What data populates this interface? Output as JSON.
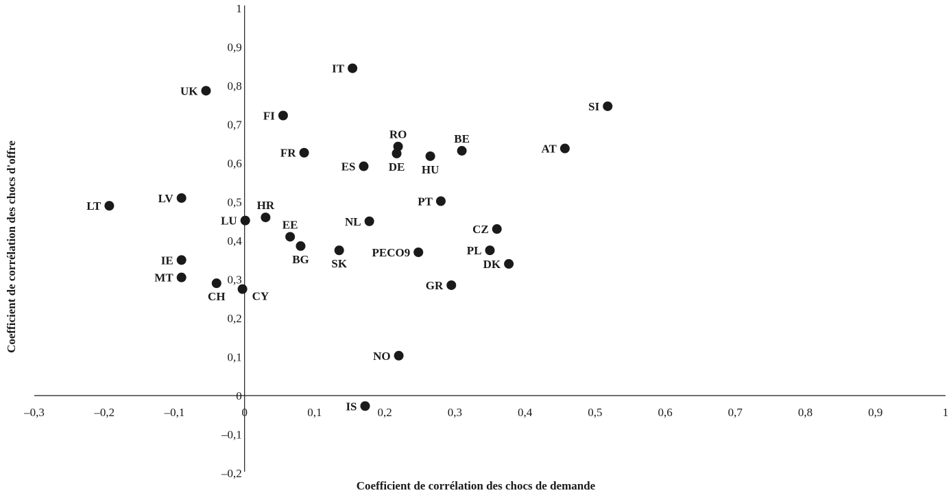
{
  "chart_data": {
    "type": "scatter",
    "title": "",
    "xlabel": "Coefficient de corrélation des chocs de demande",
    "ylabel": "Coefficient de corrélation des chocs d'offre",
    "xlim": [
      -0.3,
      1
    ],
    "ylim": [
      -0.2,
      1
    ],
    "grid": false,
    "x_ticks": [
      {
        "value": -0.3,
        "label": "–0,3"
      },
      {
        "value": -0.2,
        "label": "–0,2"
      },
      {
        "value": -0.1,
        "label": "–0,1"
      },
      {
        "value": 0,
        "label": "0"
      },
      {
        "value": 0.1,
        "label": "0,1"
      },
      {
        "value": 0.2,
        "label": "0,2"
      },
      {
        "value": 0.3,
        "label": "0,3"
      },
      {
        "value": 0.4,
        "label": "0,4"
      },
      {
        "value": 0.5,
        "label": "0,5"
      },
      {
        "value": 0.6,
        "label": "0,6"
      },
      {
        "value": 0.7,
        "label": "0,7"
      },
      {
        "value": 0.8,
        "label": "0,8"
      },
      {
        "value": 0.9,
        "label": "0,9"
      },
      {
        "value": 1,
        "label": "1"
      }
    ],
    "y_ticks": [
      {
        "value": 1,
        "label": "1"
      },
      {
        "value": 0.9,
        "label": "0,9"
      },
      {
        "value": 0.8,
        "label": "0,8"
      },
      {
        "value": 0.7,
        "label": "0,7"
      },
      {
        "value": 0.6,
        "label": "0,6"
      },
      {
        "value": 0.5,
        "label": "0,5"
      },
      {
        "value": 0.4,
        "label": "0,4"
      },
      {
        "value": 0.3,
        "label": "0,3"
      },
      {
        "value": 0.2,
        "label": "0,2"
      },
      {
        "value": 0.1,
        "label": "0,1"
      },
      {
        "value": 0,
        "label": "0"
      },
      {
        "value": -0.1,
        "label": "–0,1"
      },
      {
        "value": -0.2,
        "label": "–0,2"
      }
    ],
    "points": [
      {
        "label": "IT",
        "x": 0.154,
        "y": 0.845,
        "pos": "left"
      },
      {
        "label": "UK",
        "x": -0.055,
        "y": 0.787,
        "pos": "left"
      },
      {
        "label": "SI",
        "x": 0.518,
        "y": 0.747,
        "pos": "left"
      },
      {
        "label": "FI",
        "x": 0.055,
        "y": 0.723,
        "pos": "left"
      },
      {
        "label": "RO",
        "x": 0.219,
        "y": 0.643,
        "pos": "above"
      },
      {
        "label": "BE",
        "x": 0.31,
        "y": 0.632,
        "pos": "above"
      },
      {
        "label": "AT",
        "x": 0.457,
        "y": 0.638,
        "pos": "left"
      },
      {
        "label": "FR",
        "x": 0.085,
        "y": 0.627,
        "pos": "left"
      },
      {
        "label": "DE",
        "x": 0.217,
        "y": 0.625,
        "pos": "below"
      },
      {
        "label": "HU",
        "x": 0.265,
        "y": 0.618,
        "pos": "below"
      },
      {
        "label": "ES",
        "x": 0.17,
        "y": 0.592,
        "pos": "left"
      },
      {
        "label": "LT",
        "x": -0.193,
        "y": 0.49,
        "pos": "left"
      },
      {
        "label": "LV",
        "x": -0.09,
        "y": 0.51,
        "pos": "left"
      },
      {
        "label": "PT",
        "x": 0.28,
        "y": 0.502,
        "pos": "left"
      },
      {
        "label": "HR",
        "x": 0.03,
        "y": 0.46,
        "pos": "above"
      },
      {
        "label": "LU",
        "x": 0.001,
        "y": 0.452,
        "pos": "left"
      },
      {
        "label": "NL",
        "x": 0.178,
        "y": 0.45,
        "pos": "left"
      },
      {
        "label": "CZ",
        "x": 0.36,
        "y": 0.43,
        "pos": "left"
      },
      {
        "label": "EE",
        "x": 0.065,
        "y": 0.41,
        "pos": "above"
      },
      {
        "label": "BG",
        "x": 0.08,
        "y": 0.386,
        "pos": "below"
      },
      {
        "label": "SK",
        "x": 0.135,
        "y": 0.375,
        "pos": "below"
      },
      {
        "label": "PECO9",
        "x": 0.248,
        "y": 0.37,
        "pos": "left"
      },
      {
        "label": "PL",
        "x": 0.35,
        "y": 0.375,
        "pos": "left"
      },
      {
        "label": "IE",
        "x": -0.09,
        "y": 0.35,
        "pos": "left"
      },
      {
        "label": "DK",
        "x": 0.377,
        "y": 0.34,
        "pos": "left"
      },
      {
        "label": "MT",
        "x": -0.09,
        "y": 0.305,
        "pos": "left"
      },
      {
        "label": "CH",
        "x": -0.04,
        "y": 0.29,
        "pos": "below"
      },
      {
        "label": "CY",
        "x": -0.003,
        "y": 0.275,
        "pos": "below-right"
      },
      {
        "label": "GR",
        "x": 0.295,
        "y": 0.285,
        "pos": "left"
      },
      {
        "label": "NO",
        "x": 0.22,
        "y": 0.103,
        "pos": "left"
      },
      {
        "label": "IS",
        "x": 0.172,
        "y": -0.027,
        "pos": "left"
      }
    ]
  }
}
